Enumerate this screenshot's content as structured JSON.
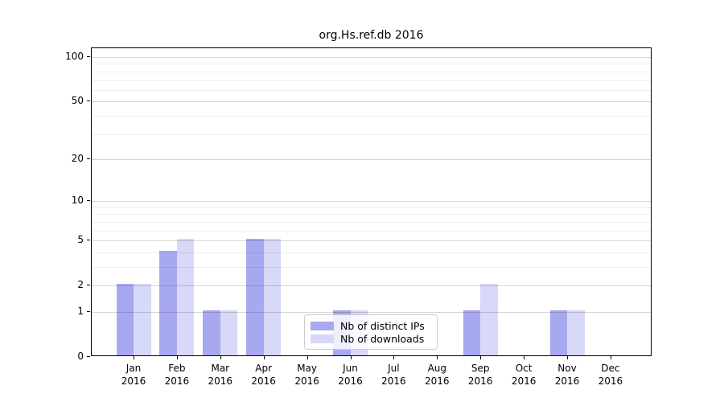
{
  "chart_data": {
    "type": "bar",
    "title": "org.Hs.ref.db 2016",
    "categories": [
      "Jan",
      "Feb",
      "Mar",
      "Apr",
      "May",
      "Jun",
      "Jul",
      "Aug",
      "Sep",
      "Oct",
      "Nov",
      "Dec"
    ],
    "x_tick_year": "2016",
    "series": [
      {
        "name": "Nb of distinct IPs",
        "color": "#a8a8f0",
        "values": [
          2,
          4,
          1,
          5,
          0,
          1,
          0,
          0,
          1,
          0,
          1,
          0
        ]
      },
      {
        "name": "Nb of downloads",
        "color": "#d8d8f8",
        "values": [
          2,
          5,
          1,
          5,
          0,
          1,
          0,
          0,
          2,
          0,
          1,
          0
        ]
      }
    ],
    "yscale": "log1p",
    "ylim": [
      0,
      115
    ],
    "yticks": [
      0,
      1,
      2,
      5,
      10,
      20,
      50,
      100
    ],
    "minor_gridlines": [
      3,
      4,
      6,
      7,
      8,
      9,
      30,
      40,
      60,
      70,
      80,
      90
    ],
    "grid": true,
    "legend_position": "lower center",
    "xlabel": "",
    "ylabel": ""
  }
}
